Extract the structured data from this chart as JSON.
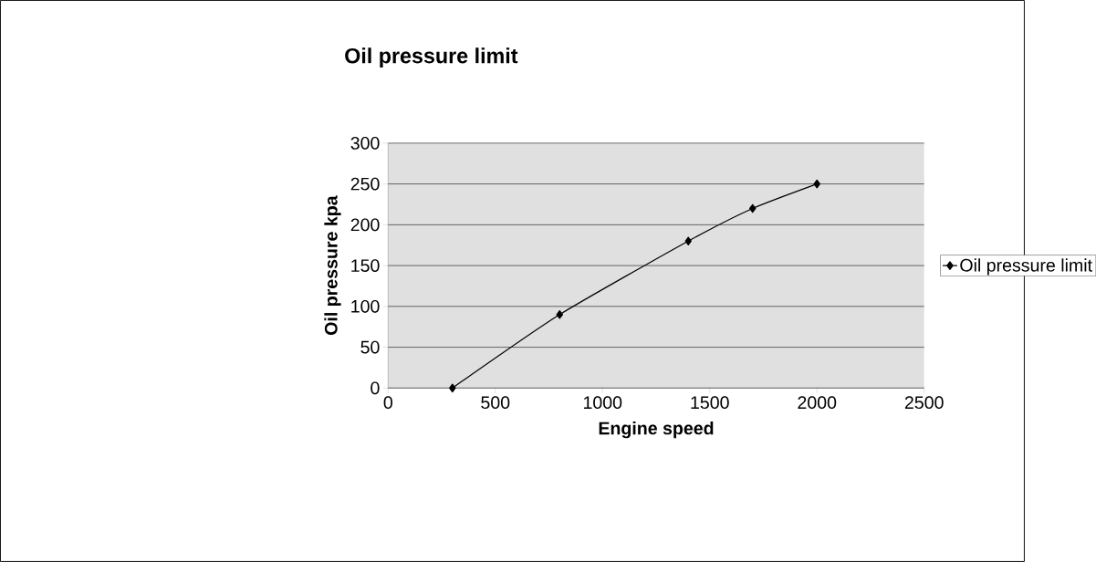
{
  "chart_data": {
    "type": "line",
    "title": "Oil pressure limit",
    "xlabel": "Engine speed",
    "ylabel": "Oil pressure kpa",
    "x": [
      300,
      800,
      1400,
      1700,
      2000
    ],
    "series": [
      {
        "name": "Oil pressure limit",
        "color": "#000000",
        "values": [
          0,
          90,
          180,
          220,
          250
        ]
      }
    ],
    "xlim": [
      0,
      2500
    ],
    "xticks": [
      0,
      500,
      1000,
      1500,
      2000,
      2500
    ],
    "ylim": [
      0,
      300
    ],
    "yticks": [
      0,
      50,
      100,
      150,
      200,
      250,
      300
    ],
    "grid": "y",
    "legend": "right",
    "marker": "diamond",
    "line_style": "solid"
  }
}
